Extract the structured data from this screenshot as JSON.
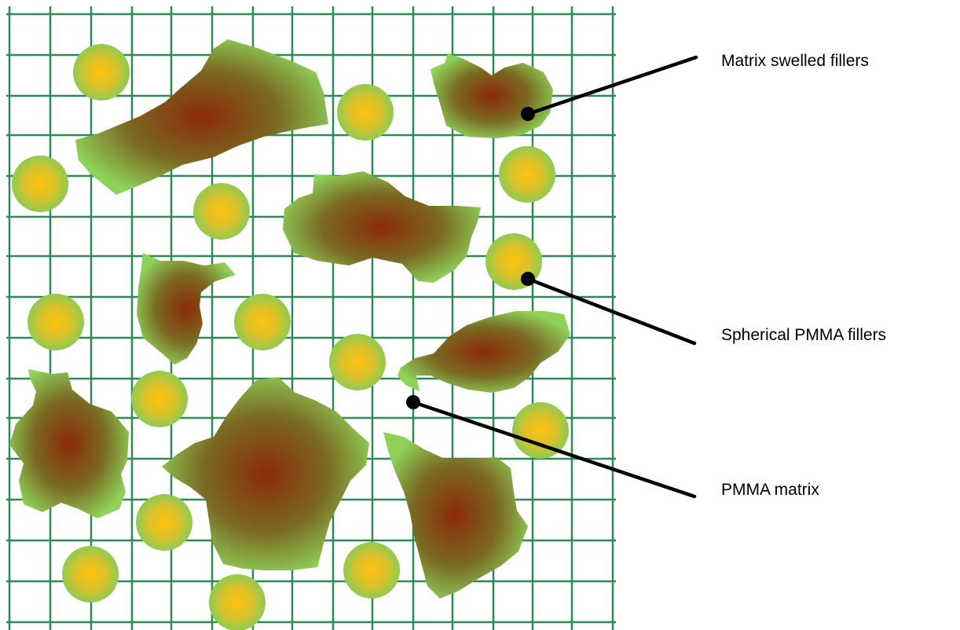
{
  "labels": {
    "swelled": "Matrix swelled fillers",
    "spherical": "Spherical PMMA fillers",
    "matrix": "PMMA matrix"
  },
  "colors": {
    "grid": "#2e8b57",
    "sphere_center": "#ffc20e",
    "sphere_edge": "#8fcb52",
    "blob_center": "#8b2a0a",
    "blob_edge": "#8fd25a",
    "leader": "#000000"
  }
}
